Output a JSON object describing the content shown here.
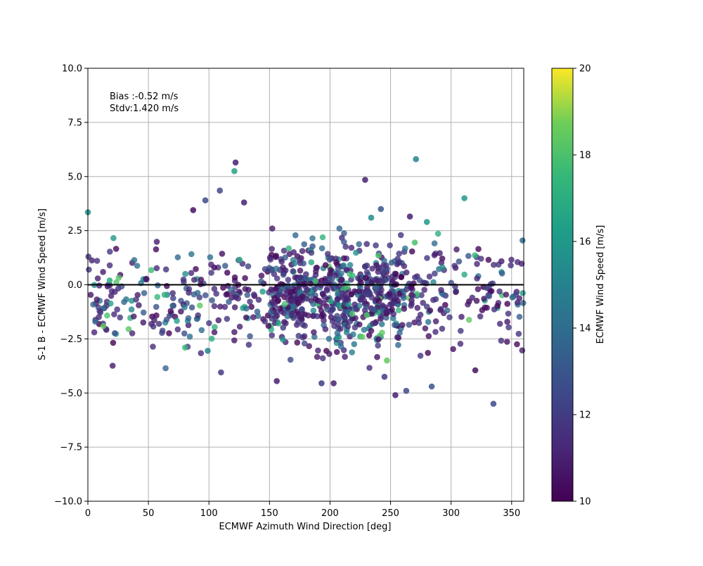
{
  "chart_data": {
    "type": "scatter",
    "title": "",
    "xlabel": "ECMWF Azimuth Wind Direction [deg]",
    "ylabel": "S-1 B - ECMWF Wind Speed [m/s]",
    "xlim": [
      0,
      360
    ],
    "ylim": [
      -10,
      10
    ],
    "x_ticks": [
      0,
      50,
      100,
      150,
      200,
      250,
      300,
      350
    ],
    "x_tick_labels": [
      "0",
      "50",
      "100",
      "150",
      "200",
      "250",
      "300",
      "350"
    ],
    "y_ticks": [
      -10,
      -7.5,
      -5,
      -2.5,
      0,
      2.5,
      5,
      7.5,
      10
    ],
    "y_tick_labels": [
      "−10.0",
      "−7.5",
      "−5.0",
      "−2.5",
      "0.0",
      "2.5",
      "5.0",
      "7.5",
      "10.0"
    ],
    "grid": true,
    "reference_line_y": 0,
    "annotations": [
      "Bias :-0.52 m/s",
      "Stdv:1.420 m/s"
    ],
    "colorbar": {
      "label": "ECMWF Wind Speed [m/s]",
      "range": [
        10,
        20
      ],
      "ticks": [
        10,
        12,
        14,
        16,
        18,
        20
      ],
      "tick_labels": [
        "10",
        "12",
        "14",
        "16",
        "18",
        "20"
      ],
      "colormap": "viridis"
    },
    "highlighted_points": [
      {
        "x": 0,
        "y": 3.35,
        "c": 15.5
      },
      {
        "x": 121,
        "y": 5.25,
        "c": 16.5
      },
      {
        "x": 122,
        "y": 5.65,
        "c": 11
      },
      {
        "x": 229,
        "y": 4.85,
        "c": 11
      },
      {
        "x": 271,
        "y": 5.8,
        "c": 15
      },
      {
        "x": 311,
        "y": 4.0,
        "c": 16
      },
      {
        "x": 87,
        "y": 3.45,
        "c": 10.5
      },
      {
        "x": 97,
        "y": 3.9,
        "c": 12.5
      },
      {
        "x": 109,
        "y": 4.35,
        "c": 12.5
      },
      {
        "x": 129,
        "y": 3.8,
        "c": 11
      },
      {
        "x": 242,
        "y": 3.5,
        "c": 13
      },
      {
        "x": 234,
        "y": 3.1,
        "c": 15.5
      },
      {
        "x": 266,
        "y": 3.15,
        "c": 11
      },
      {
        "x": 280,
        "y": 2.9,
        "c": 16
      },
      {
        "x": 359,
        "y": 2.05,
        "c": 14
      },
      {
        "x": 335,
        "y": -5.5,
        "c": 12.5
      },
      {
        "x": 254,
        "y": -5.1,
        "c": 11
      },
      {
        "x": 263,
        "y": -4.9,
        "c": 12.5
      },
      {
        "x": 156,
        "y": -4.45,
        "c": 11
      },
      {
        "x": 193,
        "y": -4.55,
        "c": 12
      },
      {
        "x": 203,
        "y": -4.55,
        "c": 11
      },
      {
        "x": 284,
        "y": -4.7,
        "c": 13
      },
      {
        "x": 320,
        "y": -3.95,
        "c": 10.5
      },
      {
        "x": 110,
        "y": -4.05,
        "c": 12
      },
      {
        "x": 245,
        "y": -4.25,
        "c": 12
      },
      {
        "x": 99,
        "y": -3.05,
        "c": 15
      },
      {
        "x": 270,
        "y": 1.95,
        "c": 18
      },
      {
        "x": 240,
        "y": 1.35,
        "c": 18
      },
      {
        "x": 247,
        "y": -3.5,
        "c": 18.5
      },
      {
        "x": 18,
        "y": 0.2,
        "c": 17
      }
    ],
    "cloud": {
      "count": 1000,
      "x_range": [
        0,
        360
      ],
      "y_center": -0.52,
      "y_stdv": 1.42,
      "c_range": [
        10,
        20
      ],
      "note": "dense cloud of ~1000 points concentrated between -3 and +2.5 m/s, densest around 150-260 deg"
    }
  }
}
